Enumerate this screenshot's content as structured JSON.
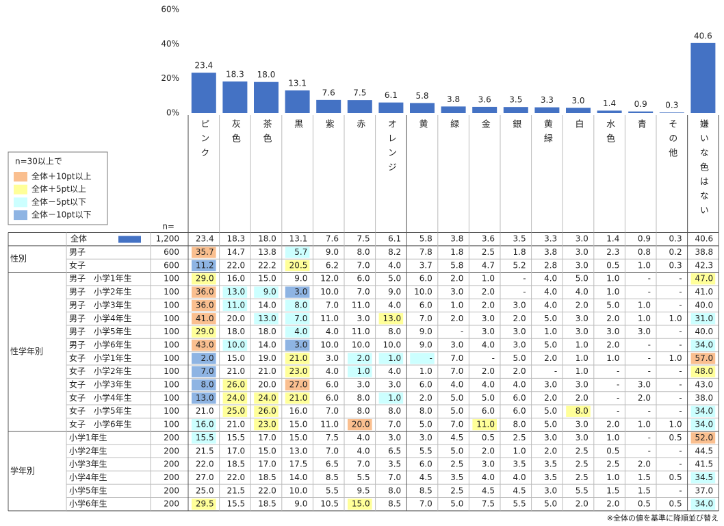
{
  "chart_data": {
    "type": "bar",
    "categories": [
      "ピンク",
      "灰色",
      "茶色",
      "黒",
      "紫",
      "赤",
      "オレンジ",
      "黄",
      "緑",
      "金",
      "銀",
      "黄緑",
      "白",
      "水色",
      "青",
      "その他",
      "嫌いな色はない"
    ],
    "values": [
      23.4,
      18.3,
      18.0,
      13.1,
      7.6,
      7.5,
      6.1,
      5.8,
      3.8,
      3.6,
      3.5,
      3.3,
      3.0,
      1.4,
      0.9,
      0.3,
      40.6
    ],
    "value_labels": [
      "23.4",
      "18.3",
      "18.0",
      "13.1",
      "7.6",
      "7.5",
      "6.1",
      "5.8",
      "3.8",
      "3.6",
      "3.5",
      "3.3",
      "3.0",
      "1.4",
      "0.9",
      "0.3",
      "40.6"
    ],
    "color": "#4472c4",
    "ylim": [
      0,
      60
    ],
    "yticks": [
      {
        "value": 0,
        "label": "0%"
      },
      {
        "value": 20,
        "label": "20%"
      },
      {
        "value": 40,
        "label": "40%"
      },
      {
        "value": 60,
        "label": "60%"
      }
    ]
  },
  "legend": {
    "title": "n=30以上で",
    "items": [
      {
        "label": "全体＋10pt以上",
        "color": "#fabf8f"
      },
      {
        "label": "全体＋5pt以上",
        "color": "#ffff99"
      },
      {
        "label": "全体－5pt以下",
        "color": "#ccffff"
      },
      {
        "label": "全体－10pt以下",
        "color": "#8eb4e3"
      }
    ]
  },
  "table": {
    "n_header": "n=",
    "total": {
      "label": "全体",
      "n": "1,200",
      "color": "#4472c4",
      "values": [
        "23.4",
        "18.3",
        "18.0",
        "13.1",
        "7.6",
        "7.5",
        "6.1",
        "5.8",
        "3.8",
        "3.6",
        "3.5",
        "3.3",
        "3.0",
        "1.4",
        "0.9",
        "0.3",
        "40.6"
      ]
    },
    "groups": [
      {
        "label": "性別",
        "rows": [
          {
            "label": "男子",
            "n": "600",
            "values": [
              "35.7",
              "14.7",
              "13.8",
              "5.7",
              "9.0",
              "8.0",
              "8.2",
              "7.8",
              "1.8",
              "2.5",
              "1.8",
              "3.8",
              "3.0",
              "2.3",
              "0.8",
              "0.2",
              "38.8"
            ],
            "highlights": {
              "0": 0,
              "3": 2
            }
          },
          {
            "label": "女子",
            "n": "600",
            "values": [
              "11.2",
              "22.0",
              "22.2",
              "20.5",
              "6.2",
              "7.0",
              "4.0",
              "3.7",
              "5.8",
              "4.7",
              "5.2",
              "2.8",
              "3.0",
              "0.5",
              "1.0",
              "0.3",
              "42.3"
            ],
            "highlights": {
              "0": 3,
              "3": 1
            }
          }
        ]
      },
      {
        "label": "性学年別",
        "rows": [
          {
            "label": "男子　小学1年生",
            "n": "100",
            "values": [
              "29.0",
              "16.0",
              "15.0",
              "9.0",
              "12.0",
              "6.0",
              "5.0",
              "6.0",
              "2.0",
              "1.0",
              "-",
              "4.0",
              "5.0",
              "1.0",
              "-",
              "-",
              "47.0"
            ],
            "highlights": {
              "0": 1,
              "16": 1
            }
          },
          {
            "label": "男子　小学2年生",
            "n": "100",
            "values": [
              "36.0",
              "13.0",
              "9.0",
              "3.0",
              "10.0",
              "7.0",
              "9.0",
              "10.0",
              "3.0",
              "2.0",
              "-",
              "4.0",
              "4.0",
              "1.0",
              "-",
              "-",
              "41.0"
            ],
            "highlights": {
              "0": 0,
              "1": 2,
              "2": 2,
              "3": 3
            }
          },
          {
            "label": "男子　小学3年生",
            "n": "100",
            "values": [
              "36.0",
              "11.0",
              "14.0",
              "8.0",
              "7.0",
              "11.0",
              "4.0",
              "6.0",
              "1.0",
              "2.0",
              "3.0",
              "4.0",
              "2.0",
              "5.0",
              "1.0",
              "-",
              "40.0"
            ],
            "highlights": {
              "0": 0,
              "1": 2,
              "3": 2
            }
          },
          {
            "label": "男子　小学4年生",
            "n": "100",
            "values": [
              "41.0",
              "20.0",
              "13.0",
              "7.0",
              "11.0",
              "3.0",
              "13.0",
              "7.0",
              "2.0",
              "3.0",
              "2.0",
              "5.0",
              "3.0",
              "2.0",
              "1.0",
              "1.0",
              "31.0"
            ],
            "highlights": {
              "0": 0,
              "2": 2,
              "3": 2,
              "6": 1,
              "16": 2
            }
          },
          {
            "label": "男子　小学5年生",
            "n": "100",
            "values": [
              "29.0",
              "18.0",
              "18.0",
              "4.0",
              "4.0",
              "11.0",
              "8.0",
              "9.0",
              "-",
              "3.0",
              "3.0",
              "1.0",
              "3.0",
              "3.0",
              "3.0",
              "-",
              "40.0"
            ],
            "highlights": {
              "0": 1,
              "3": 2
            }
          },
          {
            "label": "男子　小学6年生",
            "n": "100",
            "values": [
              "43.0",
              "10.0",
              "14.0",
              "3.0",
              "10.0",
              "10.0",
              "10.0",
              "9.0",
              "3.0",
              "4.0",
              "3.0",
              "5.0",
              "1.0",
              "2.0",
              "-",
              "-",
              "34.0"
            ],
            "highlights": {
              "0": 0,
              "1": 2,
              "3": 3,
              "16": 2
            }
          },
          {
            "label": "女子　小学1年生",
            "n": "100",
            "values": [
              "2.0",
              "15.0",
              "19.0",
              "21.0",
              "3.0",
              "2.0",
              "1.0",
              "-",
              "7.0",
              "-",
              "5.0",
              "2.0",
              "1.0",
              "1.0",
              "-",
              "1.0",
              "57.0"
            ],
            "highlights": {
              "0": 3,
              "3": 1,
              "5": 2,
              "6": 2,
              "7": 2,
              "16": 0
            }
          },
          {
            "label": "女子　小学2年生",
            "n": "100",
            "values": [
              "7.0",
              "21.0",
              "21.0",
              "23.0",
              "4.0",
              "1.0",
              "4.0",
              "1.0",
              "7.0",
              "2.0",
              "2.0",
              "-",
              "1.0",
              "-",
              "-",
              "-",
              "48.0"
            ],
            "highlights": {
              "0": 3,
              "3": 1,
              "5": 2,
              "16": 1
            }
          },
          {
            "label": "女子　小学3年生",
            "n": "100",
            "values": [
              "8.0",
              "26.0",
              "20.0",
              "27.0",
              "6.0",
              "3.0",
              "3.0",
              "6.0",
              "4.0",
              "4.0",
              "4.0",
              "3.0",
              "3.0",
              "-",
              "3.0",
              "-",
              "43.0"
            ],
            "highlights": {
              "0": 3,
              "1": 1,
              "3": 0
            }
          },
          {
            "label": "女子　小学4年生",
            "n": "100",
            "values": [
              "13.0",
              "24.0",
              "24.0",
              "21.0",
              "6.0",
              "8.0",
              "1.0",
              "2.0",
              "5.0",
              "5.0",
              "6.0",
              "2.0",
              "2.0",
              "-",
              "2.0",
              "-",
              "38.0"
            ],
            "highlights": {
              "0": 3,
              "1": 1,
              "2": 1,
              "3": 1,
              "6": 2
            }
          },
          {
            "label": "女子　小学5年生",
            "n": "100",
            "values": [
              "21.0",
              "25.0",
              "26.0",
              "16.0",
              "7.0",
              "8.0",
              "8.0",
              "8.0",
              "5.0",
              "6.0",
              "6.0",
              "5.0",
              "8.0",
              "-",
              "-",
              "-",
              "34.0"
            ],
            "highlights": {
              "1": 1,
              "2": 1,
              "12": 1,
              "16": 2
            }
          },
          {
            "label": "女子　小学6年生",
            "n": "100",
            "values": [
              "16.0",
              "21.0",
              "23.0",
              "15.0",
              "11.0",
              "20.0",
              "7.0",
              "5.0",
              "7.0",
              "11.0",
              "8.0",
              "5.0",
              "3.0",
              "2.0",
              "1.0",
              "1.0",
              "34.0"
            ],
            "highlights": {
              "0": 2,
              "2": 1,
              "5": 0,
              "9": 1,
              "16": 2
            }
          }
        ]
      },
      {
        "label": "学年別",
        "rows": [
          {
            "label": "小学1年生",
            "n": "200",
            "values": [
              "15.5",
              "15.5",
              "17.0",
              "15.0",
              "7.5",
              "4.0",
              "3.0",
              "3.0",
              "4.5",
              "0.5",
              "2.5",
              "3.0",
              "3.0",
              "1.0",
              "-",
              "0.5",
              "52.0"
            ],
            "highlights": {
              "0": 2,
              "16": 0
            }
          },
          {
            "label": "小学2年生",
            "n": "200",
            "values": [
              "21.5",
              "17.0",
              "15.0",
              "13.0",
              "7.0",
              "4.0",
              "6.5",
              "5.5",
              "5.0",
              "2.0",
              "1.0",
              "2.0",
              "2.5",
              "0.5",
              "-",
              "-",
              "44.5"
            ],
            "highlights": {}
          },
          {
            "label": "小学3年生",
            "n": "200",
            "values": [
              "22.0",
              "18.5",
              "17.0",
              "17.5",
              "6.5",
              "7.0",
              "3.5",
              "6.0",
              "2.5",
              "3.0",
              "3.5",
              "3.5",
              "2.5",
              "2.5",
              "2.0",
              "-",
              "41.5"
            ],
            "highlights": {}
          },
          {
            "label": "小学4年生",
            "n": "200",
            "values": [
              "27.0",
              "22.0",
              "18.5",
              "14.0",
              "8.5",
              "5.5",
              "7.0",
              "4.5",
              "3.5",
              "4.0",
              "4.0",
              "3.5",
              "2.5",
              "1.0",
              "1.5",
              "0.5",
              "34.5"
            ],
            "highlights": {
              "16": 2
            }
          },
          {
            "label": "小学5年生",
            "n": "200",
            "values": [
              "25.0",
              "21.5",
              "22.0",
              "10.0",
              "5.5",
              "9.5",
              "8.0",
              "8.5",
              "2.5",
              "4.5",
              "4.5",
              "3.0",
              "5.5",
              "1.5",
              "1.5",
              "-",
              "37.0"
            ],
            "highlights": {}
          },
          {
            "label": "小学6年生",
            "n": "200",
            "values": [
              "29.5",
              "15.5",
              "18.5",
              "9.0",
              "10.5",
              "15.0",
              "8.5",
              "7.0",
              "5.0",
              "7.5",
              "5.5",
              "5.0",
              "2.0",
              "2.0",
              "0.5",
              "0.5",
              "34.0"
            ],
            "highlights": {
              "0": 1,
              "5": 1,
              "16": 2
            }
          }
        ]
      }
    ]
  },
  "note": "※全体の値を基準に降順並び替え"
}
